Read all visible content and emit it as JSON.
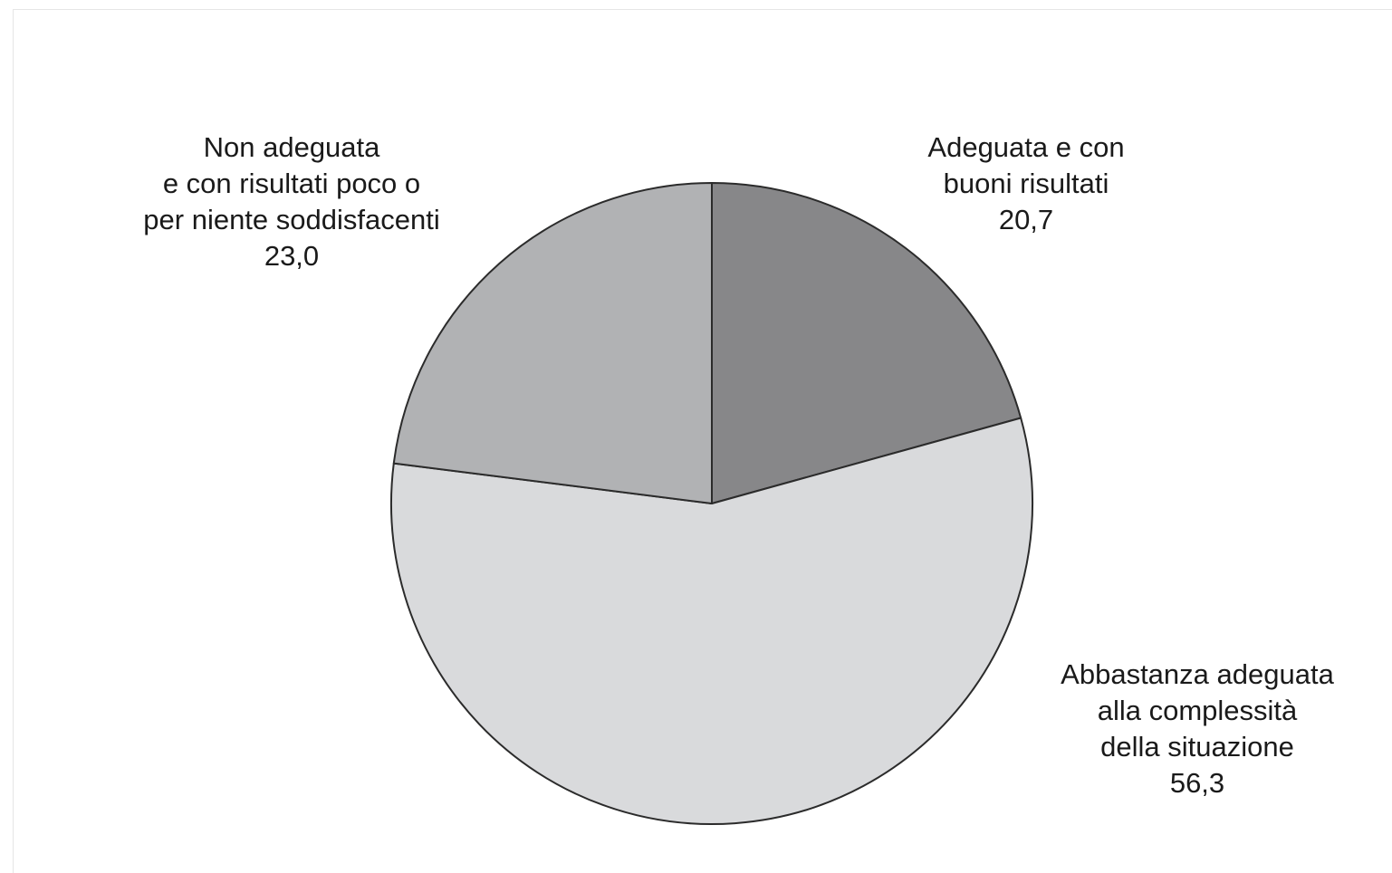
{
  "chart_data": {
    "type": "pie",
    "title": "",
    "start_angle_deg": 0,
    "direction": "clockwise",
    "slices": [
      {
        "label_lines": [
          "Adeguata e con",
          "buoni risultati"
        ],
        "value": 20.7,
        "value_label": "20,7",
        "color": "#878789"
      },
      {
        "label_lines": [
          "Abbastanza adeguata",
          "alla complessità",
          "della situazione"
        ],
        "value": 56.3,
        "value_label": "56,3",
        "color": "#d9dadc"
      },
      {
        "label_lines": [
          "Non adeguata",
          "e con risultati poco o",
          "per niente soddisfacenti"
        ],
        "value": 23.0,
        "value_label": "23,0",
        "color": "#b1b2b4"
      }
    ],
    "legend": "none",
    "edge_color": "#2b2b2b"
  }
}
